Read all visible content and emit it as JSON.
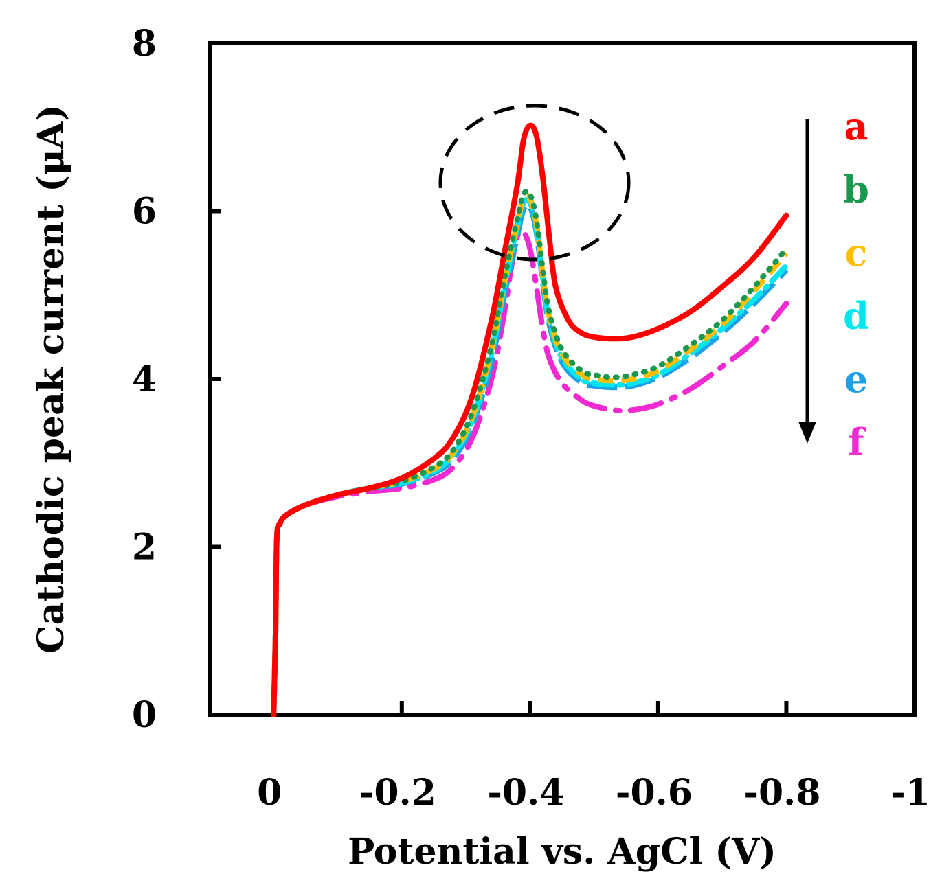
{
  "chart_data": {
    "type": "line",
    "title": "",
    "xlabel": "Potential vs. AgCl (V)",
    "ylabel": "Cathodic peak current (μA)",
    "xlim": [
      0.1,
      -1.0
    ],
    "ylim": [
      0,
      8
    ],
    "xticks": [
      0,
      -0.2,
      -0.4,
      -0.6,
      -0.8,
      -1
    ],
    "xtick_labels": [
      "0",
      "-0.2",
      "-0.4",
      "-0.6",
      "-0.8",
      "-1"
    ],
    "yticks": [
      0,
      2,
      4,
      6,
      8
    ],
    "ytick_labels": [
      "0",
      "2",
      "4",
      "6",
      "8"
    ],
    "grid": false,
    "legend_position": "right",
    "annotations": [
      "dashed circle around peak near -0.4 V",
      "downward arrow from a to f"
    ],
    "series": [
      {
        "name": "a",
        "color": "#ff0000",
        "dash": "solid",
        "x": [
          0,
          -0.003,
          -0.005,
          -0.01,
          -0.02,
          -0.05,
          -0.1,
          -0.15,
          -0.2,
          -0.25,
          -0.28,
          -0.31,
          -0.34,
          -0.36,
          -0.38,
          -0.39,
          -0.4,
          -0.41,
          -0.42,
          -0.43,
          -0.44,
          -0.46,
          -0.48,
          -0.5,
          -0.53,
          -0.56,
          -0.6,
          -0.65,
          -0.7,
          -0.75,
          -0.8
        ],
        "y": [
          0,
          1.0,
          2.1,
          2.28,
          2.38,
          2.5,
          2.62,
          2.7,
          2.82,
          3.05,
          3.3,
          3.8,
          4.7,
          5.5,
          6.3,
          6.85,
          7.02,
          6.9,
          6.4,
          5.7,
          5.1,
          4.7,
          4.55,
          4.5,
          4.48,
          4.5,
          4.6,
          4.8,
          5.1,
          5.45,
          5.95
        ]
      },
      {
        "name": "b",
        "color": "#1a9850",
        "dash": "dotted",
        "x": [
          0,
          -0.003,
          -0.005,
          -0.01,
          -0.02,
          -0.05,
          -0.1,
          -0.15,
          -0.2,
          -0.25,
          -0.28,
          -0.31,
          -0.34,
          -0.36,
          -0.38,
          -0.39,
          -0.4,
          -0.41,
          -0.42,
          -0.43,
          -0.45,
          -0.48,
          -0.5,
          -0.53,
          -0.56,
          -0.6,
          -0.65,
          -0.7,
          -0.75,
          -0.8
        ],
        "y": [
          0,
          1.0,
          2.1,
          2.28,
          2.38,
          2.5,
          2.62,
          2.7,
          2.78,
          2.95,
          3.15,
          3.6,
          4.4,
          5.2,
          5.9,
          6.2,
          6.2,
          5.9,
          5.3,
          4.8,
          4.35,
          4.1,
          4.05,
          4.02,
          4.05,
          4.15,
          4.4,
          4.7,
          5.1,
          5.55
        ]
      },
      {
        "name": "c",
        "color": "#ffbf00",
        "dash": "dashed",
        "x": [
          0,
          -0.003,
          -0.005,
          -0.01,
          -0.02,
          -0.05,
          -0.1,
          -0.15,
          -0.2,
          -0.25,
          -0.28,
          -0.31,
          -0.34,
          -0.36,
          -0.38,
          -0.39,
          -0.4,
          -0.41,
          -0.42,
          -0.43,
          -0.45,
          -0.48,
          -0.5,
          -0.53,
          -0.56,
          -0.6,
          -0.65,
          -0.7,
          -0.75,
          -0.8
        ],
        "y": [
          0,
          1.0,
          2.1,
          2.28,
          2.38,
          2.5,
          2.62,
          2.7,
          2.78,
          2.93,
          3.12,
          3.55,
          4.35,
          5.15,
          5.85,
          6.15,
          6.15,
          5.85,
          5.25,
          4.75,
          4.3,
          4.06,
          4.0,
          3.98,
          4.0,
          4.1,
          4.35,
          4.65,
          5.05,
          5.5
        ]
      },
      {
        "name": "d",
        "color": "#00e5ee",
        "dash": "dashdot",
        "x": [
          0,
          -0.003,
          -0.005,
          -0.01,
          -0.02,
          -0.05,
          -0.1,
          -0.15,
          -0.2,
          -0.25,
          -0.28,
          -0.31,
          -0.34,
          -0.36,
          -0.38,
          -0.39,
          -0.4,
          -0.41,
          -0.42,
          -0.43,
          -0.45,
          -0.48,
          -0.5,
          -0.53,
          -0.56,
          -0.6,
          -0.65,
          -0.7,
          -0.75,
          -0.8
        ],
        "y": [
          0,
          1.0,
          2.1,
          2.28,
          2.38,
          2.5,
          2.62,
          2.7,
          2.76,
          2.9,
          3.1,
          3.5,
          4.3,
          5.1,
          5.8,
          6.1,
          6.1,
          5.8,
          5.2,
          4.7,
          4.25,
          4.0,
          3.95,
          3.93,
          3.95,
          4.05,
          4.3,
          4.6,
          4.95,
          5.35
        ]
      },
      {
        "name": "e",
        "color": "#1ea0e6",
        "dash": "longdash",
        "x": [
          0,
          -0.003,
          -0.005,
          -0.01,
          -0.02,
          -0.05,
          -0.1,
          -0.15,
          -0.2,
          -0.25,
          -0.28,
          -0.31,
          -0.34,
          -0.36,
          -0.38,
          -0.39,
          -0.4,
          -0.41,
          -0.42,
          -0.43,
          -0.45,
          -0.48,
          -0.5,
          -0.53,
          -0.56,
          -0.6,
          -0.65,
          -0.7,
          -0.75,
          -0.8
        ],
        "y": [
          0,
          1.0,
          2.1,
          2.28,
          2.38,
          2.5,
          2.62,
          2.7,
          2.75,
          2.88,
          3.05,
          3.45,
          4.2,
          5.0,
          5.7,
          6.02,
          6.05,
          5.75,
          5.15,
          4.65,
          4.2,
          3.96,
          3.92,
          3.9,
          3.92,
          4.02,
          4.25,
          4.55,
          4.9,
          5.3
        ]
      },
      {
        "name": "f",
        "color": "#ee2ad0",
        "dash": "longdashdot",
        "x": [
          0,
          -0.003,
          -0.005,
          -0.01,
          -0.02,
          -0.05,
          -0.1,
          -0.15,
          -0.2,
          -0.25,
          -0.28,
          -0.31,
          -0.34,
          -0.36,
          -0.37,
          -0.38,
          -0.39,
          -0.4,
          -0.41,
          -0.42,
          -0.43,
          -0.45,
          -0.48,
          -0.5,
          -0.53,
          -0.56,
          -0.6,
          -0.65,
          -0.7,
          -0.75,
          -0.8
        ],
        "y": [
          0,
          1.0,
          2.1,
          2.28,
          2.38,
          2.5,
          2.6,
          2.66,
          2.7,
          2.8,
          2.95,
          3.3,
          4.0,
          4.8,
          5.3,
          5.7,
          5.75,
          5.55,
          5.1,
          4.6,
          4.25,
          3.95,
          3.75,
          3.68,
          3.63,
          3.63,
          3.7,
          3.88,
          4.15,
          4.45,
          4.9
        ]
      }
    ]
  }
}
